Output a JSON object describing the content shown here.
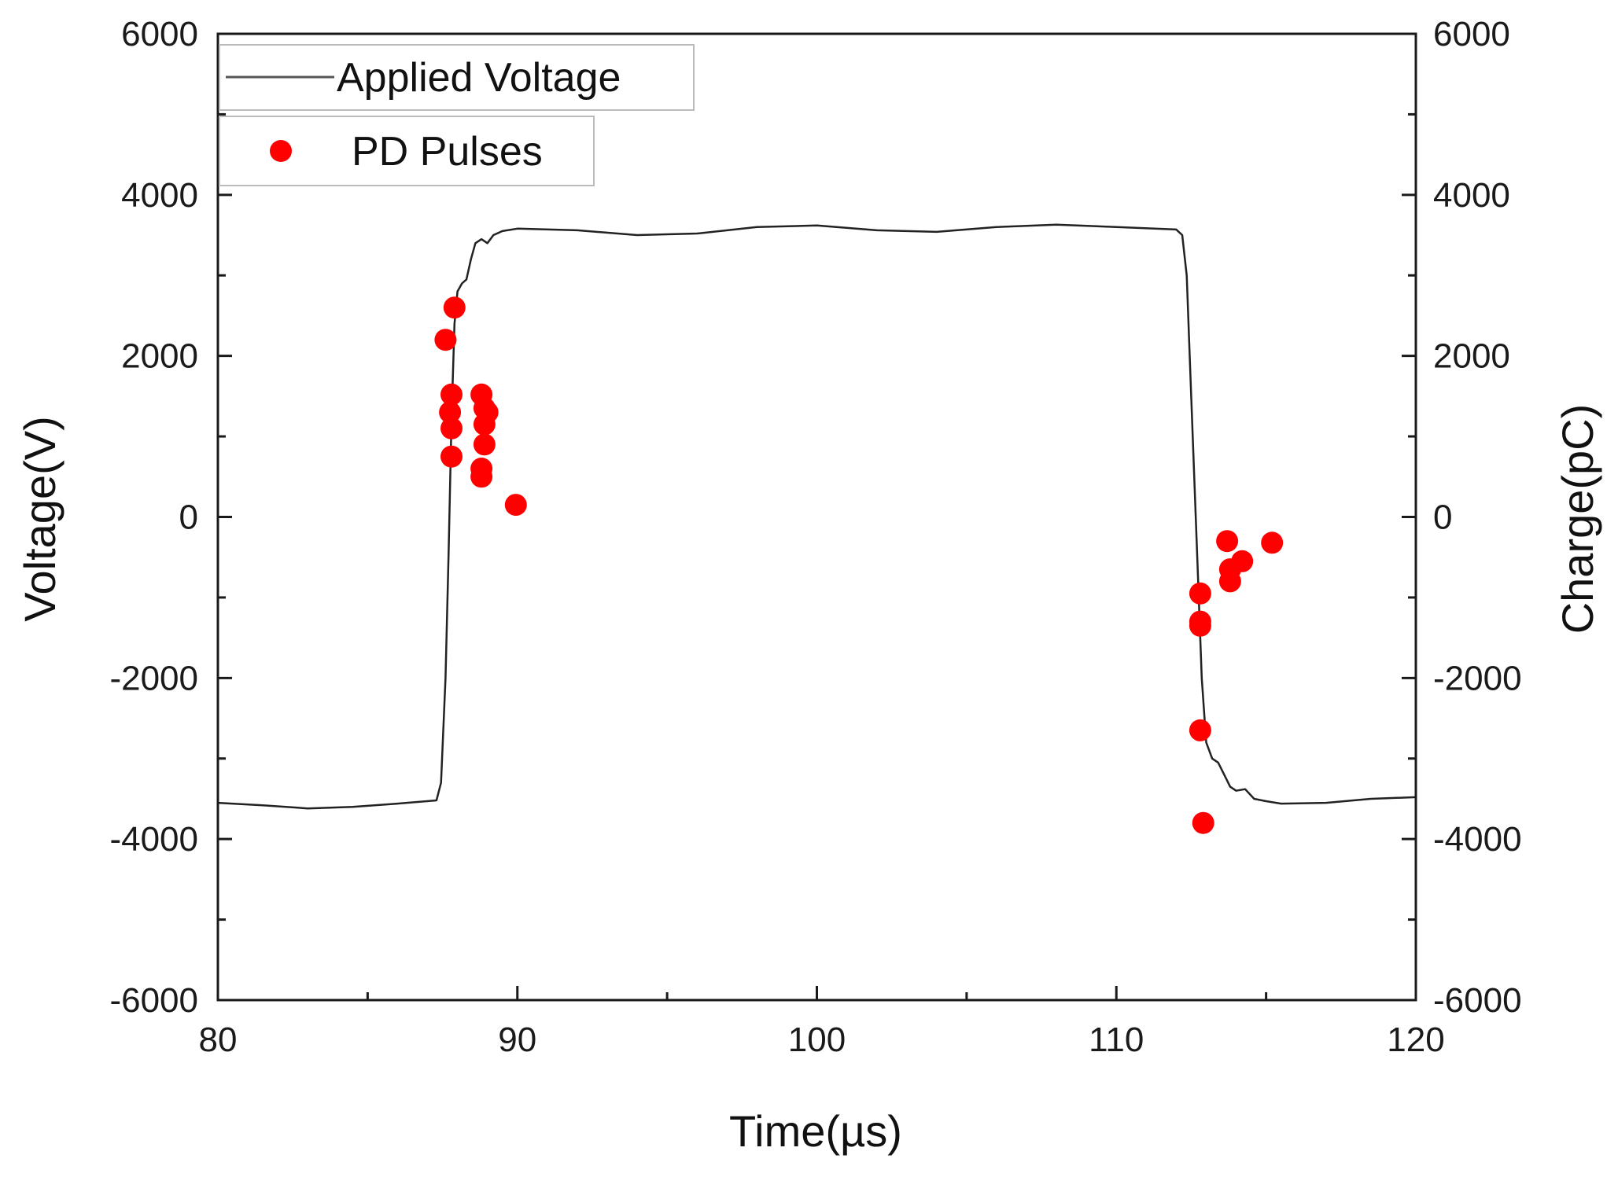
{
  "chart_data": {
    "type": "line+scatter",
    "xlabel": "Time(µs)",
    "ylabel_left": "Voltage(V)",
    "ylabel_right": "Charge(pC)",
    "xlim": [
      80,
      120
    ],
    "ylim_left": [
      -6000,
      6000
    ],
    "ylim_right": [
      -6000,
      6000
    ],
    "x_ticks": [
      "80",
      "90",
      "100",
      "110",
      "120"
    ],
    "y_ticks_left": [
      "-6000",
      "-4000",
      "-2000",
      "0",
      "2000",
      "4000",
      "6000"
    ],
    "y_ticks_right": [
      "-6000",
      "-4000",
      "-2000",
      "0",
      "2000",
      "4000",
      "6000"
    ],
    "legend": [
      {
        "label": "Applied Voltage",
        "kind": "line",
        "color": "#222222"
      },
      {
        "label": "PD Pulses",
        "kind": "marker",
        "color": "#ff0000"
      }
    ],
    "series": [
      {
        "name": "Applied Voltage",
        "axis": "left",
        "color": "#222222",
        "points": [
          [
            80.0,
            -3550
          ],
          [
            81.5,
            -3580
          ],
          [
            83.0,
            -3620
          ],
          [
            84.5,
            -3600
          ],
          [
            86.0,
            -3560
          ],
          [
            87.3,
            -3520
          ],
          [
            87.45,
            -3300
          ],
          [
            87.6,
            -2000
          ],
          [
            87.7,
            -500
          ],
          [
            87.8,
            1200
          ],
          [
            87.9,
            2400
          ],
          [
            88.0,
            2800
          ],
          [
            88.15,
            2900
          ],
          [
            88.3,
            2950
          ],
          [
            88.45,
            3200
          ],
          [
            88.6,
            3400
          ],
          [
            88.8,
            3450
          ],
          [
            89.0,
            3400
          ],
          [
            89.2,
            3500
          ],
          [
            89.5,
            3550
          ],
          [
            90.0,
            3580
          ],
          [
            92.0,
            3560
          ],
          [
            94.0,
            3500
          ],
          [
            96.0,
            3520
          ],
          [
            98.0,
            3600
          ],
          [
            100.0,
            3620
          ],
          [
            102.0,
            3560
          ],
          [
            104.0,
            3540
          ],
          [
            106.0,
            3600
          ],
          [
            108.0,
            3630
          ],
          [
            110.0,
            3600
          ],
          [
            112.0,
            3570
          ],
          [
            112.2,
            3500
          ],
          [
            112.35,
            3000
          ],
          [
            112.5,
            1500
          ],
          [
            112.7,
            -500
          ],
          [
            112.85,
            -2000
          ],
          [
            113.0,
            -2800
          ],
          [
            113.2,
            -3000
          ],
          [
            113.4,
            -3050
          ],
          [
            113.6,
            -3200
          ],
          [
            113.8,
            -3350
          ],
          [
            114.0,
            -3400
          ],
          [
            114.3,
            -3380
          ],
          [
            114.6,
            -3500
          ],
          [
            115.0,
            -3530
          ],
          [
            115.5,
            -3560
          ],
          [
            117.0,
            -3550
          ],
          [
            118.5,
            -3500
          ],
          [
            120.0,
            -3480
          ]
        ]
      },
      {
        "name": "PD Pulses",
        "axis": "right",
        "color": "#ff0000",
        "points": [
          [
            87.6,
            2200
          ],
          [
            87.9,
            2600
          ],
          [
            87.8,
            1520
          ],
          [
            87.75,
            1300
          ],
          [
            87.8,
            1100
          ],
          [
            87.8,
            750
          ],
          [
            88.8,
            1520
          ],
          [
            88.9,
            1350
          ],
          [
            89.0,
            1300
          ],
          [
            88.9,
            1150
          ],
          [
            88.9,
            900
          ],
          [
            88.8,
            600
          ],
          [
            88.8,
            500
          ],
          [
            89.95,
            150
          ],
          [
            112.8,
            -950
          ],
          [
            112.8,
            -1300
          ],
          [
            112.8,
            -1350
          ],
          [
            112.8,
            -2650
          ],
          [
            112.9,
            -3800
          ],
          [
            113.7,
            -300
          ],
          [
            113.8,
            -650
          ],
          [
            113.8,
            -800
          ],
          [
            114.2,
            -550
          ],
          [
            115.2,
            -320
          ]
        ]
      }
    ]
  }
}
